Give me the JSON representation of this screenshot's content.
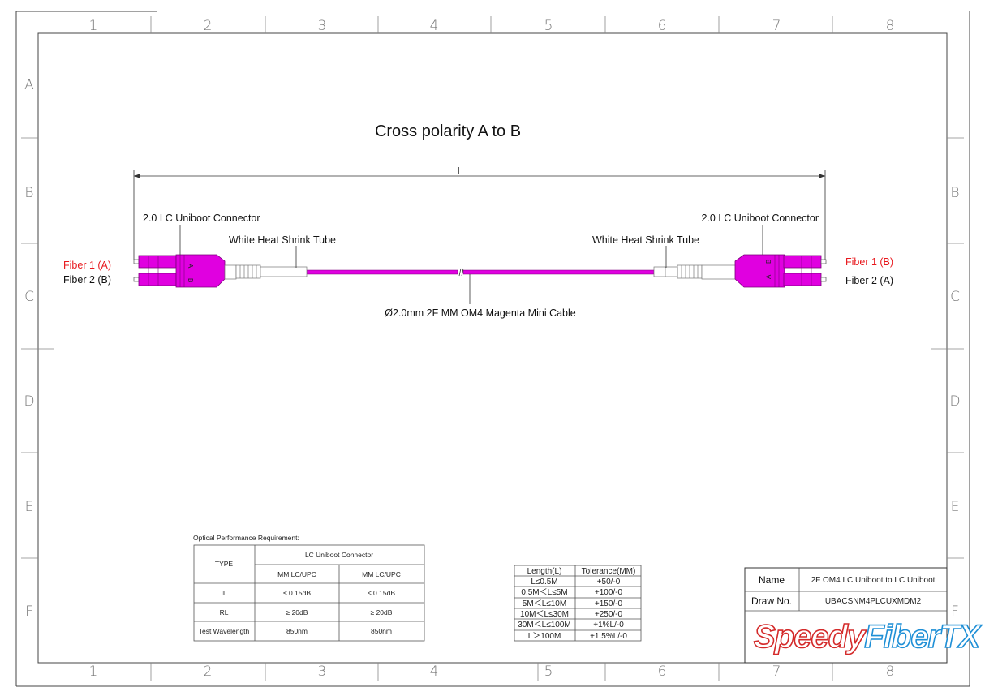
{
  "grid": {
    "columns": [
      "1",
      "2",
      "3",
      "4",
      "5",
      "6",
      "7",
      "8"
    ],
    "rows": [
      "A",
      "B",
      "C",
      "D",
      "E",
      "F"
    ]
  },
  "title": "Cross polarity A to B",
  "dimension_label": "L",
  "left": {
    "connector_label": "2.0 LC Uniboot Connector",
    "tube_label": "White Heat Shrink Tube",
    "fiber1": "Fiber 1 (A)",
    "fiber2": "Fiber 2 (B)",
    "mark_top": "A",
    "mark_bottom": "B"
  },
  "right": {
    "connector_label": "2.0 LC Uniboot Connector",
    "tube_label": "White Heat Shrink Tube",
    "fiber1": "Fiber 1 (B)",
    "fiber2": "Fiber 2 (A)",
    "mark_top": "B",
    "mark_bottom": "A"
  },
  "cable_label": "Ø2.0mm 2F MM OM4 Magenta Mini Cable",
  "colors": {
    "magenta": "#e000e0",
    "fiber1_label": "#e8191e",
    "logo_red": "#d42a2a",
    "logo_blue": "#1e8fd6"
  },
  "optical": {
    "caption": "Optical Performance Requirement:",
    "type_header": "TYPE",
    "group_header": "LC Uniboot Connector",
    "sub_headers": [
      "MM LC/UPC",
      "MM LC/UPC"
    ],
    "rows": [
      {
        "label": "IL",
        "values": [
          "≤ 0.15dB",
          "≤ 0.15dB"
        ]
      },
      {
        "label": "RL",
        "values": [
          "≥ 20dB",
          "≥ 20dB"
        ]
      },
      {
        "label": "Test Wavelength",
        "values": [
          "850nm",
          "850nm"
        ]
      }
    ]
  },
  "tolerance": {
    "headers": [
      "Length(L)",
      "Tolerance(MM)"
    ],
    "rows": [
      [
        "L≤0.5M",
        "+50/-0"
      ],
      [
        "0.5M＜L≤5M",
        "+100/-0"
      ],
      [
        "5M＜L≤10M",
        "+150/-0"
      ],
      [
        "10M＜L≤30M",
        "+250/-0"
      ],
      [
        "30M＜L≤100M",
        "+1%L/-0"
      ],
      [
        "L＞100M",
        "+1.5%L/-0"
      ]
    ]
  },
  "title_block": {
    "name_label": "Name",
    "name_value": "2F OM4 LC Uniboot to LC Uniboot",
    "draw_label": "Draw No.",
    "draw_value": "UBACSNM4PLCUXMDM2",
    "logo_part1": "Speedy",
    "logo_part2": "FiberTX"
  }
}
